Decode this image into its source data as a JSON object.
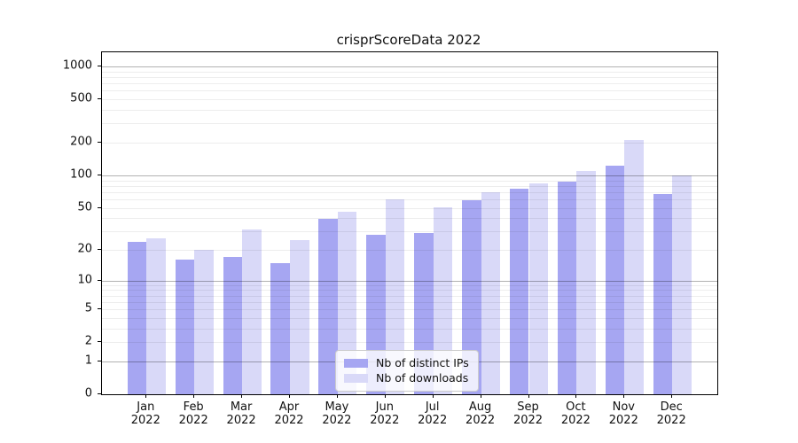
{
  "title": "crisprScoreData 2022",
  "chart_data": {
    "type": "bar",
    "title": "crisprScoreData 2022",
    "categories": [
      "Jan\n2022",
      "Feb\n2022",
      "Mar\n2022",
      "Apr\n2022",
      "May\n2022",
      "Jun\n2022",
      "Jul\n2022",
      "Aug\n2022",
      "Sep\n2022",
      "Oct\n2022",
      "Nov\n2022",
      "Dec\n2022"
    ],
    "series": [
      {
        "name": "Nb of distinct IPs",
        "color": "#a6a6f2",
        "values": [
          24,
          16,
          17,
          15,
          39,
          28,
          29,
          59,
          75,
          87,
          122,
          67
        ]
      },
      {
        "name": "Nb of downloads",
        "color": "#d9d9f8",
        "values": [
          26,
          20,
          31,
          25,
          46,
          60,
          50,
          70,
          84,
          110,
          210,
          100
        ]
      }
    ],
    "xlabel": "",
    "ylabel": "",
    "yscale": "log1p",
    "ylim": [
      0,
      1300
    ],
    "y_ticks": [
      0,
      1,
      2,
      5,
      10,
      20,
      50,
      100,
      200,
      500,
      1000
    ],
    "y_major_gridlines": [
      1,
      10,
      100,
      1000
    ],
    "y_minor_gridlines": [
      2,
      3,
      4,
      5,
      6,
      7,
      8,
      9,
      20,
      30,
      40,
      50,
      60,
      70,
      80,
      90,
      200,
      300,
      400,
      500,
      600,
      700,
      800,
      900
    ],
    "grid": "both",
    "legend_position": "lower center",
    "background_color": "#ffffff",
    "axis_color": "#000000"
  }
}
